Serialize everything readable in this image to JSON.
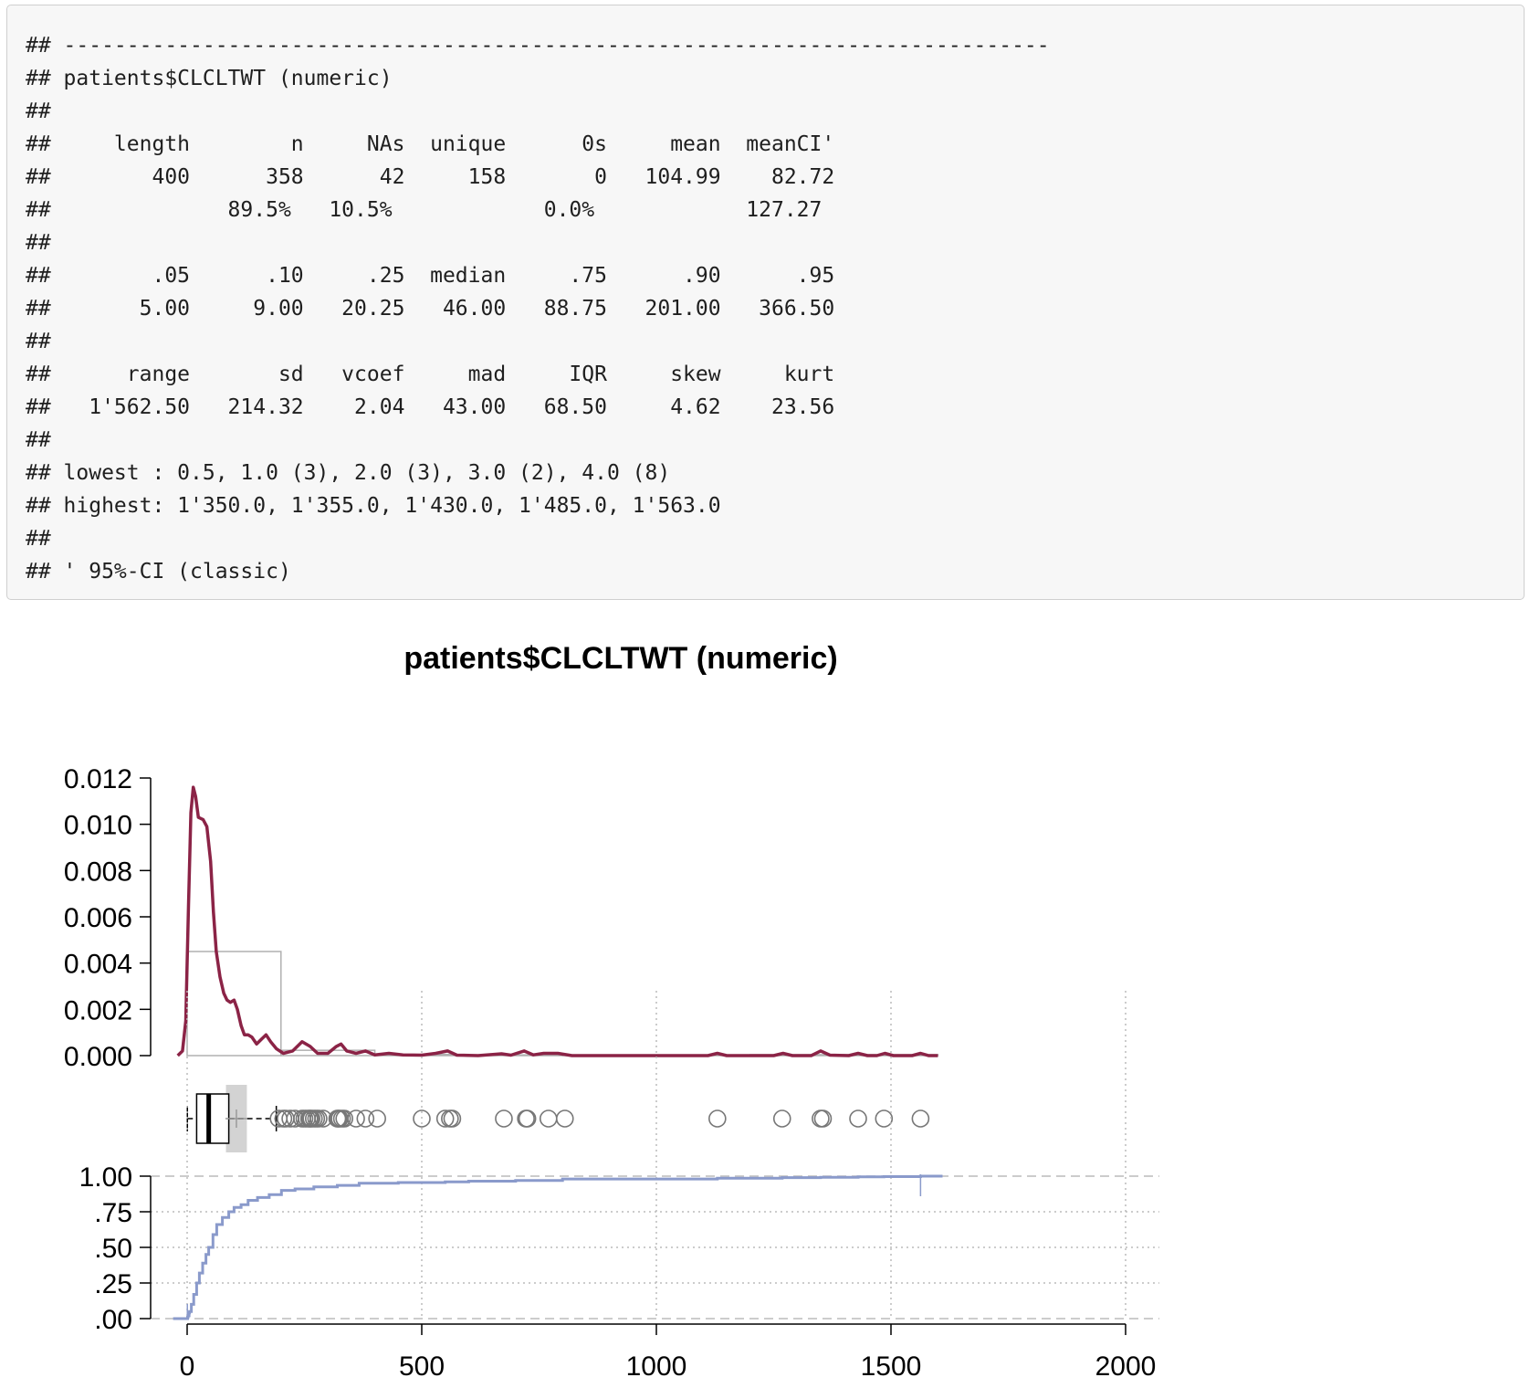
{
  "console_output": {
    "lines": [
      "## ------------------------------------------------------------------------------",
      "## patients$CLCLTWT (numeric)",
      "##",
      "##     length        n     NAs  unique      0s     mean  meanCI'",
      "##        400      358      42     158       0   104.99    82.72",
      "##              89.5%   10.5%            0.0%            127.27",
      "##",
      "##        .05      .10     .25  median     .75      .90      .95",
      "##       5.00     9.00   20.25   46.00   88.75   201.00   366.50",
      "##",
      "##      range       sd   vcoef     mad     IQR     skew     kurt",
      "##   1'562.50   214.32    2.04   43.00   68.50     4.62    23.56",
      "##",
      "## lowest : 0.5, 1.0 (3), 2.0 (3), 3.0 (2), 4.0 (8)",
      "## highest: 1'350.0, 1'355.0, 1'430.0, 1'485.0, 1'563.0",
      "##",
      "## ' 95%-CI (classic)"
    ]
  },
  "colors": {
    "density_line": "#8b2346",
    "ecdf_line": "#8a9acb",
    "histogram_border": "#b0b0b0",
    "iqr_band": "#d3d3d3",
    "outlier_circle": "#777777",
    "grid": "#bbbbbb",
    "axis": "#000000"
  },
  "chart_data": {
    "title": "patients$CLCLTWT (numeric)",
    "panels": [
      {
        "type": "area",
        "role": "histogram-with-density",
        "ylim": [
          0,
          0.012
        ],
        "y_ticks": [
          "0.000",
          "0.002",
          "0.004",
          "0.006",
          "0.008",
          "0.010",
          "0.012"
        ],
        "histogram": {
          "bins": [
            {
              "x0": 0,
              "x1": 200,
              "density": 0.0045
            },
            {
              "x0": 200,
              "x1": 400,
              "density": 0.00023
            },
            {
              "x0": 400,
              "x1": 600,
              "density": 5e-05
            },
            {
              "x0": 600,
              "x1": 800,
              "density": 3e-05
            },
            {
              "x0": 800,
              "x1": 1000,
              "density": 3e-06
            },
            {
              "x0": 1000,
              "x1": 1200,
              "density": 3e-06
            },
            {
              "x0": 1200,
              "x1": 1400,
              "density": 4e-05
            },
            {
              "x0": 1400,
              "x1": 1600,
              "density": 4e-05
            }
          ]
        },
        "density_curve": [
          [
            -20,
            0
          ],
          [
            -10,
            0.0002
          ],
          [
            -3,
            0.0015
          ],
          [
            3,
            0.0065
          ],
          [
            8,
            0.0105
          ],
          [
            13,
            0.0116
          ],
          [
            18,
            0.0112
          ],
          [
            24,
            0.0103
          ],
          [
            34,
            0.0102
          ],
          [
            42,
            0.0099
          ],
          [
            50,
            0.0084
          ],
          [
            56,
            0.0062
          ],
          [
            62,
            0.0045
          ],
          [
            70,
            0.0034
          ],
          [
            78,
            0.0027
          ],
          [
            85,
            0.0024
          ],
          [
            92,
            0.0023
          ],
          [
            100,
            0.0024
          ],
          [
            107,
            0.002
          ],
          [
            115,
            0.0013
          ],
          [
            122,
            0.0009
          ],
          [
            130,
            0.0009
          ],
          [
            138,
            0.0008
          ],
          [
            148,
            0.0005
          ],
          [
            158,
            0.0007
          ],
          [
            168,
            0.0009
          ],
          [
            178,
            0.0006
          ],
          [
            190,
            0.0003
          ],
          [
            205,
            0.0001
          ],
          [
            225,
            0.0002
          ],
          [
            245,
            0.0006
          ],
          [
            262,
            0.0004
          ],
          [
            278,
            0.0001
          ],
          [
            300,
            0.0001
          ],
          [
            318,
            0.0004
          ],
          [
            328,
            0.0005
          ],
          [
            340,
            0.0002
          ],
          [
            360,
            0.0001
          ],
          [
            380,
            0.0002
          ],
          [
            400,
            3e-05
          ],
          [
            430,
            0.0001
          ],
          [
            460,
            3e-05
          ],
          [
            500,
            2e-05
          ],
          [
            530,
            0.0001
          ],
          [
            555,
            0.0002
          ],
          [
            575,
            2e-05
          ],
          [
            620,
            0.0
          ],
          [
            670,
            8e-05
          ],
          [
            690,
            2e-05
          ],
          [
            718,
            0.0002
          ],
          [
            738,
            3e-05
          ],
          [
            760,
            0.0001
          ],
          [
            790,
            0.0001
          ],
          [
            820,
            0.0
          ],
          [
            1000,
            0.0
          ],
          [
            1110,
            0.0
          ],
          [
            1130,
            0.0001
          ],
          [
            1150,
            0.0
          ],
          [
            1250,
            0.0
          ],
          [
            1270,
            0.0001
          ],
          [
            1290,
            0.0
          ],
          [
            1330,
            0.0
          ],
          [
            1350,
            0.0002
          ],
          [
            1370,
            2e-05
          ],
          [
            1410,
            0.0
          ],
          [
            1430,
            0.0001
          ],
          [
            1450,
            0.0
          ],
          [
            1470,
            0.0
          ],
          [
            1487,
            0.0001
          ],
          [
            1505,
            0.0
          ],
          [
            1545,
            0.0
          ],
          [
            1563,
            0.0001
          ],
          [
            1580,
            0.0
          ],
          [
            1600,
            0.0
          ]
        ]
      },
      {
        "type": "scatter",
        "role": "boxplot",
        "box": {
          "q1": 20.25,
          "median": 46.0,
          "q3": 88.75,
          "whisker_low": 0.5,
          "whisker_high": 190,
          "mean": 104.99
        },
        "mean_ci": [
          82.72,
          127.27
        ],
        "outliers": [
          195,
          205,
          210,
          220,
          230,
          245,
          250,
          255,
          260,
          262,
          265,
          270,
          275,
          280,
          290,
          320,
          322,
          325,
          330,
          335,
          360,
          380,
          405,
          500,
          550,
          560,
          565,
          675,
          722,
          725,
          770,
          805,
          1130,
          1268,
          1350,
          1355,
          1430,
          1485,
          1563
        ]
      },
      {
        "type": "line",
        "role": "ecdf",
        "ylim": [
          0,
          1
        ],
        "y_ticks": [
          ".00",
          ".25",
          ".50",
          ".75",
          "1.00"
        ],
        "x_ticks": [
          "0",
          "500",
          "1000",
          "1500",
          "2000"
        ],
        "xlim": [
          0,
          2000
        ],
        "points": [
          [
            0.5,
            0.0
          ],
          [
            1,
            0.01
          ],
          [
            2,
            0.02
          ],
          [
            4,
            0.04
          ],
          [
            5,
            0.05
          ],
          [
            9,
            0.1
          ],
          [
            14,
            0.17
          ],
          [
            20.25,
            0.25
          ],
          [
            26,
            0.32
          ],
          [
            33,
            0.39
          ],
          [
            40,
            0.45
          ],
          [
            46,
            0.5
          ],
          [
            55,
            0.59
          ],
          [
            63,
            0.66
          ],
          [
            75,
            0.71
          ],
          [
            88.75,
            0.75
          ],
          [
            100,
            0.78
          ],
          [
            115,
            0.8
          ],
          [
            130,
            0.83
          ],
          [
            150,
            0.85
          ],
          [
            175,
            0.87
          ],
          [
            201,
            0.9
          ],
          [
            230,
            0.91
          ],
          [
            270,
            0.925
          ],
          [
            320,
            0.935
          ],
          [
            366.5,
            0.95
          ],
          [
            450,
            0.955
          ],
          [
            550,
            0.96
          ],
          [
            600,
            0.965
          ],
          [
            700,
            0.97
          ],
          [
            800,
            0.98
          ],
          [
            1000,
            0.98
          ],
          [
            1130,
            0.985
          ],
          [
            1268,
            0.99
          ],
          [
            1350,
            0.992
          ],
          [
            1430,
            0.995
          ],
          [
            1485,
            0.997
          ],
          [
            1563,
            1.0
          ]
        ]
      }
    ]
  }
}
